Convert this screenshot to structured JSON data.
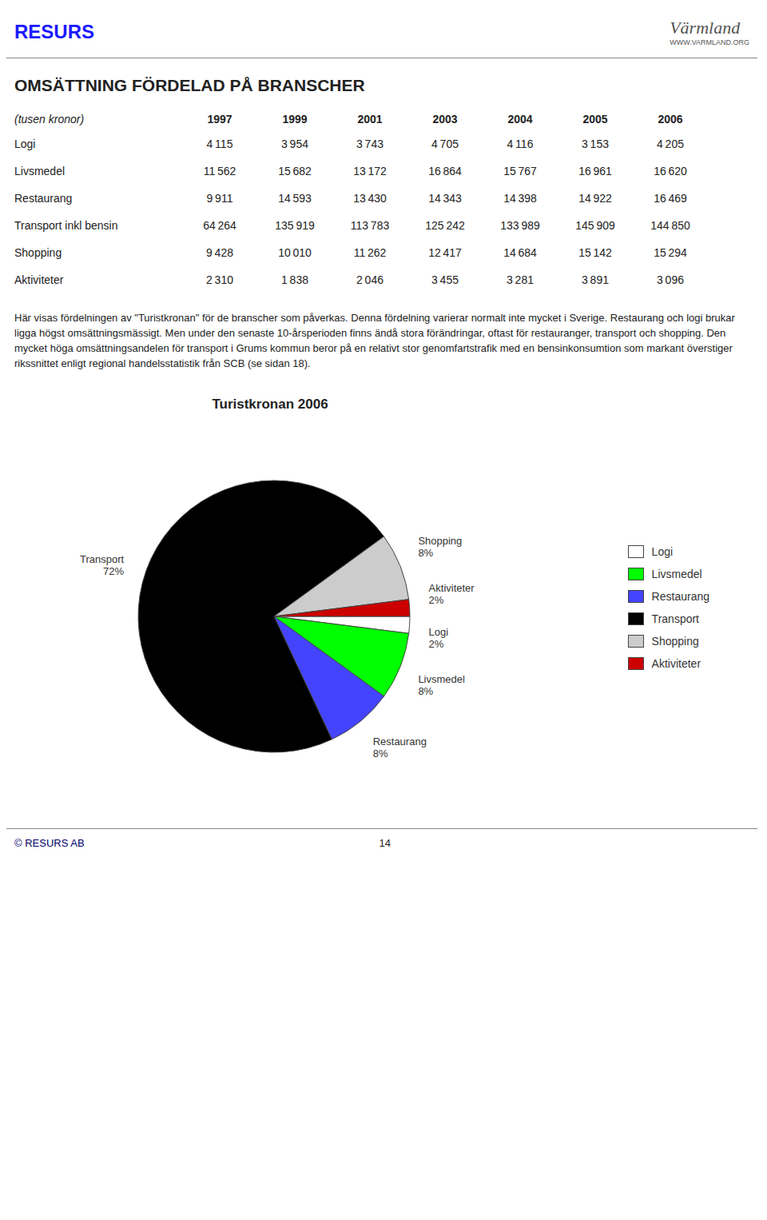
{
  "chart_data": [
    {
      "type": "table",
      "title": "OMSÄTTNING FÖRDELAD PÅ BRANSCHER",
      "subtitle": "(tusen kronor)",
      "categories": [
        "1997",
        "1999",
        "2001",
        "2003",
        "2004",
        "2005",
        "2006"
      ],
      "series": [
        {
          "name": "Logi",
          "values": [
            4115,
            3954,
            3743,
            4705,
            4116,
            3153,
            4205
          ],
          "value_labels": [
            "4 115",
            "3 954",
            "3 743",
            "4 705",
            "4 116",
            "3 153",
            "4 205"
          ]
        },
        {
          "name": "Livsmedel",
          "values": [
            11562,
            15682,
            13172,
            16864,
            15767,
            16961,
            16620
          ],
          "value_labels": [
            "11 562",
            "15 682",
            "13 172",
            "16 864",
            "15 767",
            "16 961",
            "16 620"
          ]
        },
        {
          "name": "Restaurang",
          "values": [
            9911,
            14593,
            13430,
            14343,
            14398,
            14922,
            16469
          ],
          "value_labels": [
            "9 911",
            "14 593",
            "13 430",
            "14 343",
            "14 398",
            "14 922",
            "16 469"
          ]
        },
        {
          "name": "Transport inkl bensin",
          "values": [
            64264,
            135919,
            113783,
            125242,
            133989,
            145909,
            144850
          ],
          "value_labels": [
            "64 264",
            "135 919",
            "113 783",
            "125 242",
            "133 989",
            "145 909",
            "144 850"
          ]
        },
        {
          "name": "Shopping",
          "values": [
            9428,
            10010,
            11262,
            12417,
            14684,
            15142,
            15294
          ],
          "value_labels": [
            "9 428",
            "10 010",
            "11 262",
            "12 417",
            "14 684",
            "15 142",
            "15 294"
          ]
        },
        {
          "name": "Aktiviteter",
          "values": [
            2310,
            1838,
            2046,
            3455,
            3281,
            3891,
            3096
          ],
          "value_labels": [
            "2 310",
            "1 838",
            "2 046",
            "3 455",
            "3 281",
            "3 891",
            "3 096"
          ]
        }
      ],
      "annotations": [
        "RESURS",
        "Värmland",
        "WWW.VARMLAND.ORG",
        "Här visas fördelningen av \"Turistkronan\" för de branscher som påverkas. Denna fördelning varierar normalt inte mycket i Sverige. Restaurang och logi brukar ligga högst omsättningsmässigt. Men under den senaste 10-årsperioden finns ändå stora förändringar, oftast för restauranger, transport och shopping. Den mycket höga omsättningsandelen för transport i Grums kommun beror på en relativt stor genomfartstrafik med en bensinkonsumtion som markant överstiger rikssnittet enligt regional handelsstatistik från SCB (se sidan 18).",
        "© RESURS  AB",
        "14"
      ]
    },
    {
      "type": "pie",
      "title": "Turistkronan 2006",
      "categories": [
        "Logi",
        "Livsmedel",
        "Restaurang",
        "Transport",
        "Shopping",
        "Aktiviteter"
      ],
      "values": [
        2,
        8,
        8,
        72,
        8,
        2
      ],
      "value_labels": [
        "2%",
        "8%",
        "8%",
        "72%",
        "8%",
        "2%"
      ],
      "colors": [
        "#FFFFFF",
        "#00FF00",
        "#4444FF",
        "#000000",
        "#CCCCCC",
        "#CC0000"
      ],
      "data_labels": true,
      "legend": "right"
    }
  ]
}
